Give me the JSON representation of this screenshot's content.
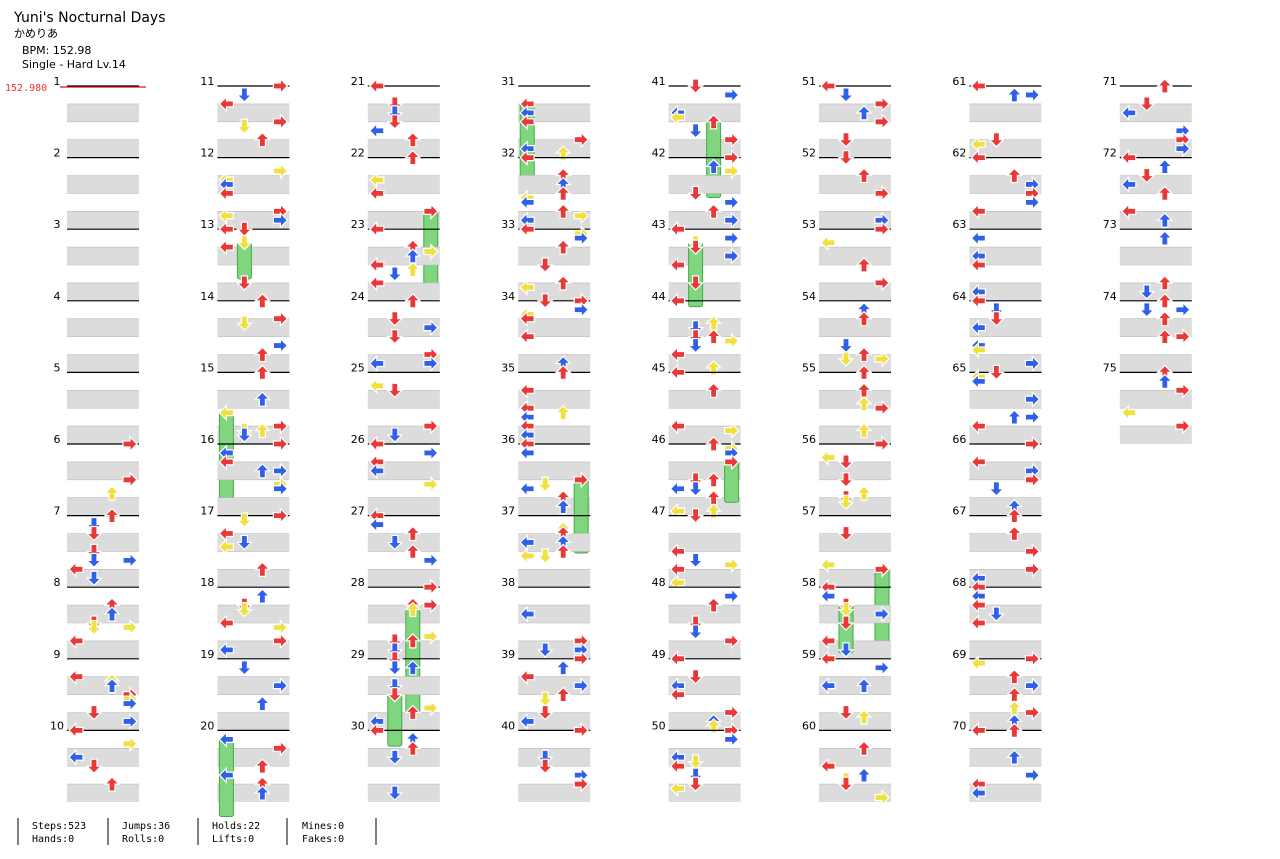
{
  "header": {
    "title": "Yuni's Nocturnal Days",
    "artist": "かめりあ",
    "bpm": "BPM: 152.98",
    "difficulty": "Single - Hard  Lv.14",
    "bpm_marker": "152.980"
  },
  "measures": [
    1,
    2,
    3,
    4,
    5,
    6,
    7,
    8,
    9,
    10,
    11,
    12,
    13,
    14,
    15,
    16,
    17,
    18,
    19,
    20,
    21,
    22,
    23,
    24,
    25,
    26,
    27,
    28,
    29,
    30,
    31,
    32,
    33,
    34,
    35,
    36,
    37,
    38,
    39,
    40,
    41,
    42,
    43,
    44,
    45,
    46,
    47,
    48,
    49,
    50,
    51,
    52,
    53,
    54,
    55,
    56,
    57,
    58,
    59,
    60,
    61,
    62,
    63,
    64,
    65,
    66,
    67,
    68,
    69,
    70,
    71,
    72,
    73,
    74,
    75
  ],
  "stats": [
    [
      "Steps:523",
      "Hands:0"
    ],
    [
      "Jumps:36",
      "Rolls:0"
    ],
    [
      "Holds:22",
      "Lifts:0"
    ],
    [
      "Mines:0",
      "Fakes:0"
    ]
  ]
}
